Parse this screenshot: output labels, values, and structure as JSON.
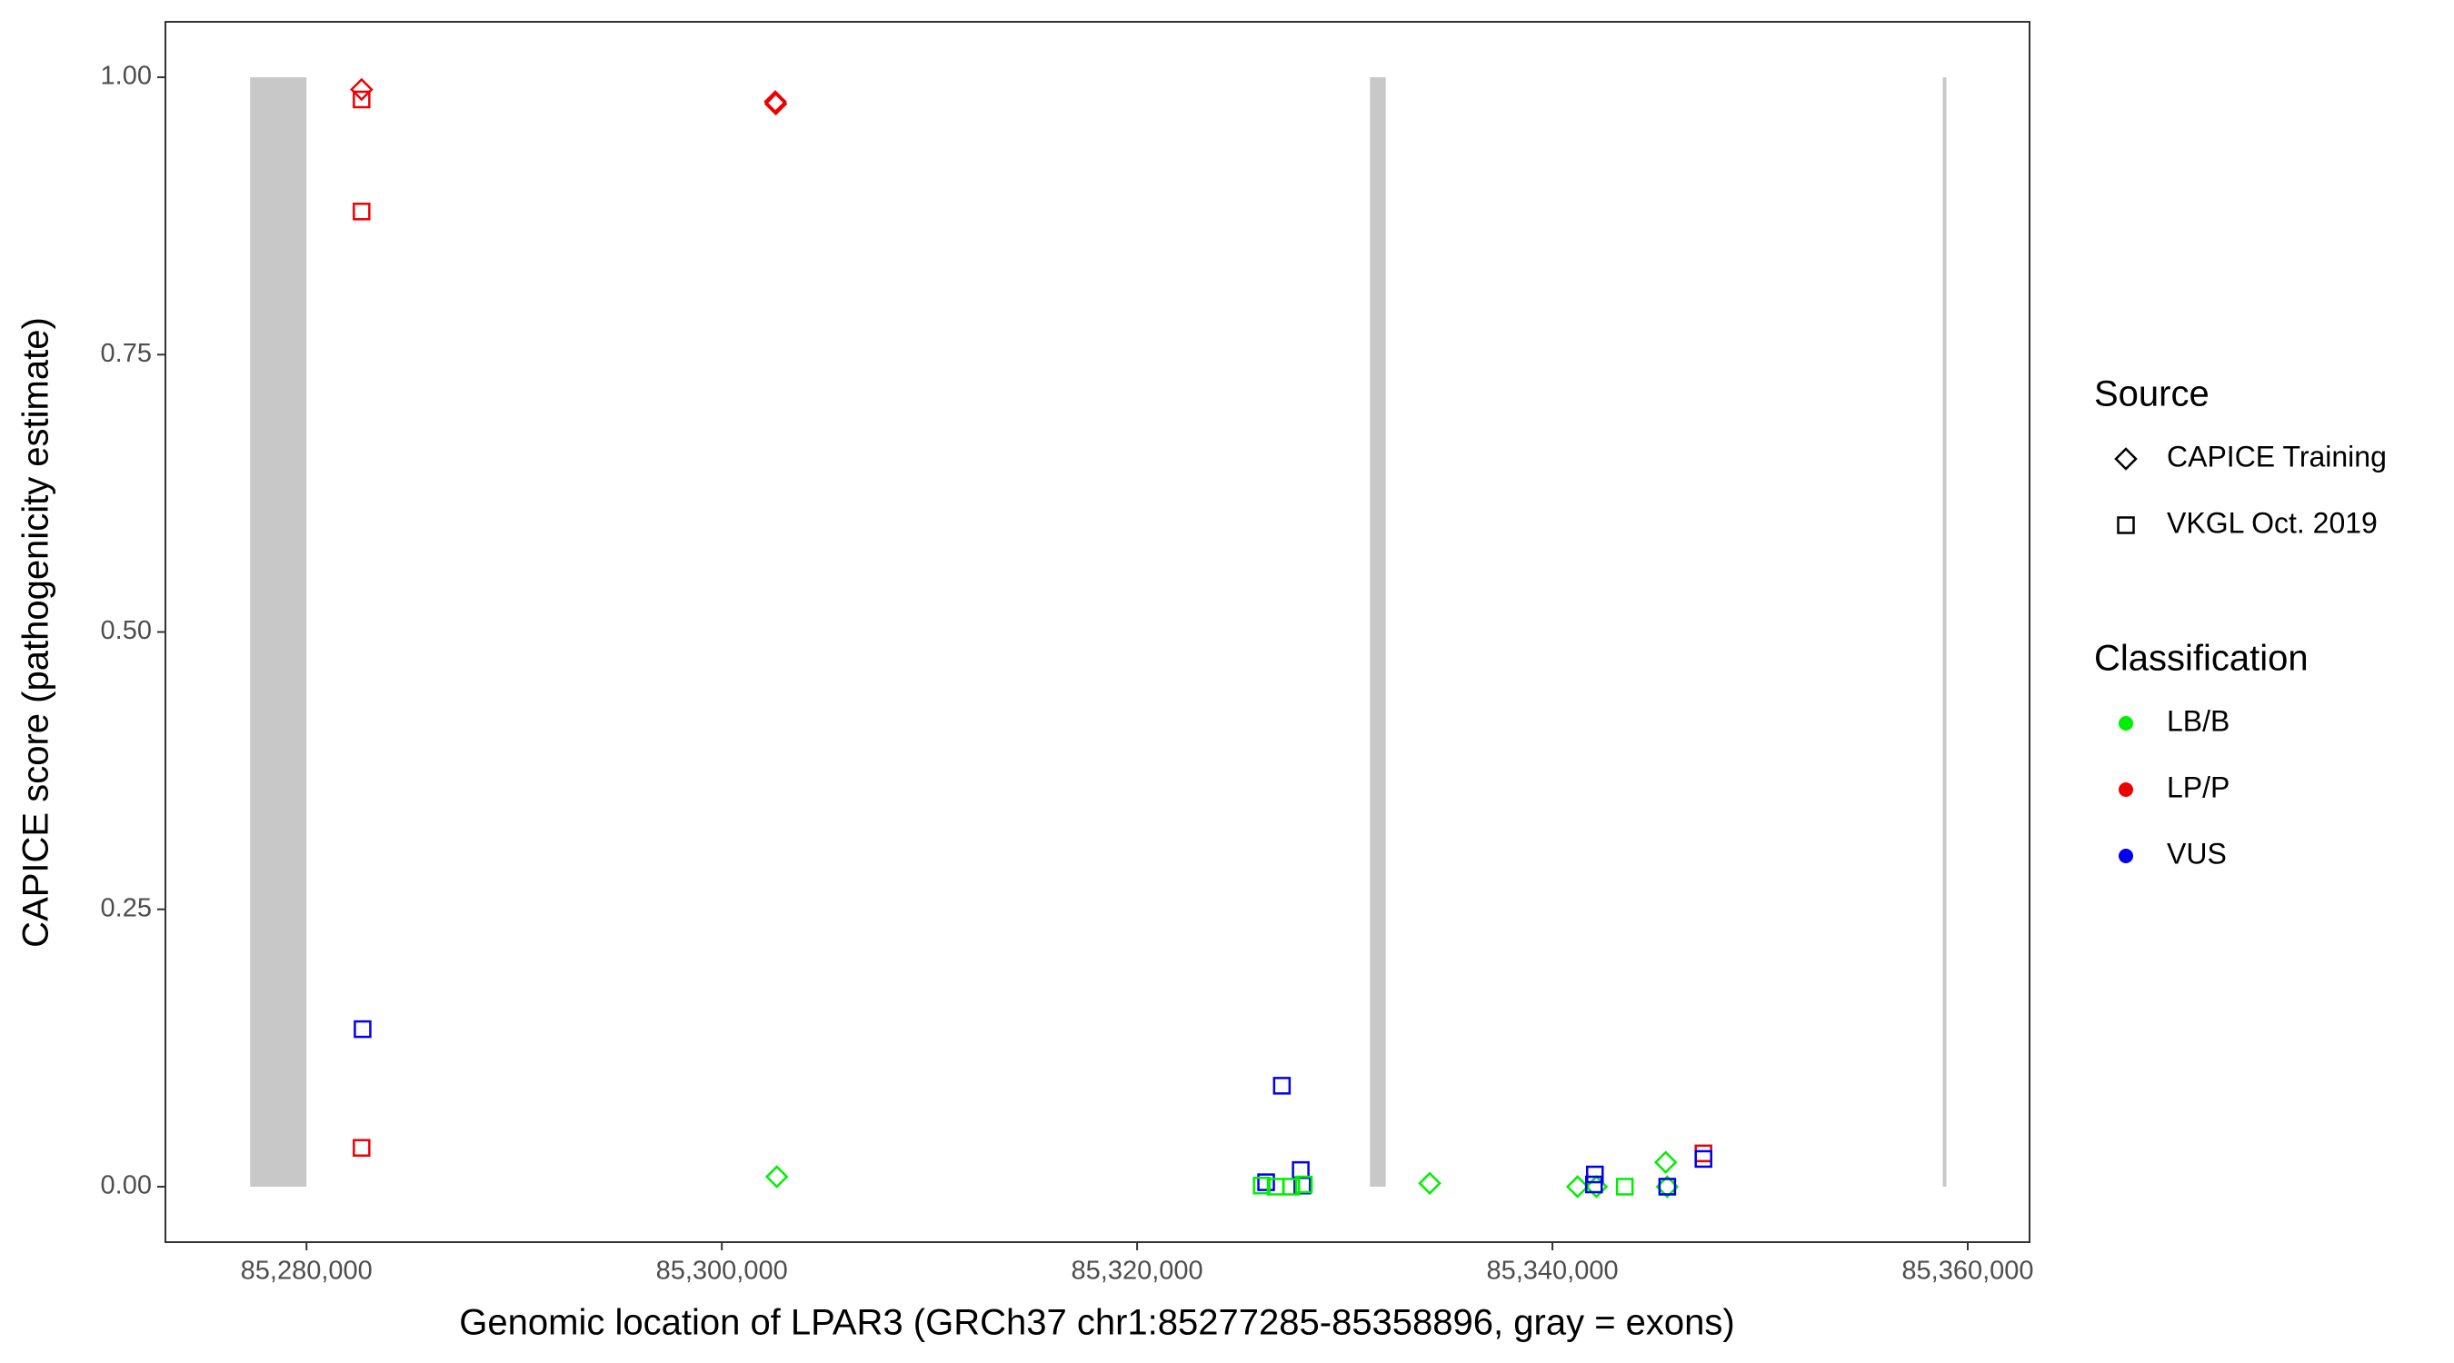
{
  "chart_data": {
    "type": "scatter",
    "x_label": "Genomic location of LPAR3 (GRCh37 chr1:85277285-85358896, gray = exons)",
    "y_label": "CAPICE score (pathogenicity estimate)",
    "xlim": [
      85273205,
      85362977
    ],
    "ylim": [
      -0.05,
      1.05
    ],
    "xticks": [
      {
        "value": 85280000,
        "label": "85,280,000"
      },
      {
        "value": 85300000,
        "label": "85,300,000"
      },
      {
        "value": 85320000,
        "label": "85,320,000"
      },
      {
        "value": 85340000,
        "label": "85,340,000"
      },
      {
        "value": 85360000,
        "label": "85,360,000"
      }
    ],
    "yticks": [
      {
        "value": 0,
        "label": "0.00"
      },
      {
        "value": 0.25,
        "label": "0.25"
      },
      {
        "value": 0.5,
        "label": "0.50"
      },
      {
        "value": 0.75,
        "label": "0.75"
      },
      {
        "value": 1,
        "label": "1.00"
      }
    ],
    "exons": [
      [
        85277285,
        85280000
      ],
      [
        85331212,
        85331970
      ],
      [
        85358800,
        85358896
      ]
    ],
    "exon_color": "#c8c8c8",
    "legend_source_title": "Source",
    "sources": [
      {
        "name": "CAPICE Training",
        "shape": "diamond"
      },
      {
        "name": "VKGL Oct. 2019",
        "shape": "square"
      }
    ],
    "legend_class_title": "Classification",
    "classifications": [
      {
        "name": "LB/B",
        "color": "#00ee00"
      },
      {
        "name": "LP/P",
        "color": "#ee0000"
      },
      {
        "name": "VUS",
        "color": "#0000ee"
      }
    ],
    "series": [
      {
        "source": "CAPICE Training",
        "classification": "LP/P",
        "x": [
          85282652,
          85302576,
          85302600
        ],
        "y": [
          0.989,
          0.978,
          0.976
        ]
      },
      {
        "source": "CAPICE Training",
        "classification": "LB/B",
        "x": [
          85302650,
          85334091,
          85341212,
          85342120,
          85345455,
          85345530
        ],
        "y": [
          0.009,
          0.003,
          0,
          0,
          0.022,
          0
        ]
      },
      {
        "source": "VKGL Oct. 2019",
        "classification": "LP/P",
        "x": [
          85282652,
          85282652,
          85282652,
          85347273
        ],
        "y": [
          0.98,
          0.879,
          0.035,
          0.03
        ]
      },
      {
        "source": "VKGL Oct. 2019",
        "classification": "VUS",
        "x": [
          85282700,
          85326970,
          85327879,
          85326212,
          85327955,
          85342045,
          85342000,
          85345530,
          85347273
        ],
        "y": [
          0.142,
          0.091,
          0.015,
          0.004,
          0.001,
          0.011,
          0.002,
          0,
          0.025
        ]
      },
      {
        "source": "VKGL Oct. 2019",
        "classification": "LB/B",
        "x": [
          85326667,
          85327424,
          85328030,
          85343485,
          85326000
        ],
        "y": [
          0,
          0,
          0.002,
          0,
          0.001
        ]
      }
    ]
  }
}
